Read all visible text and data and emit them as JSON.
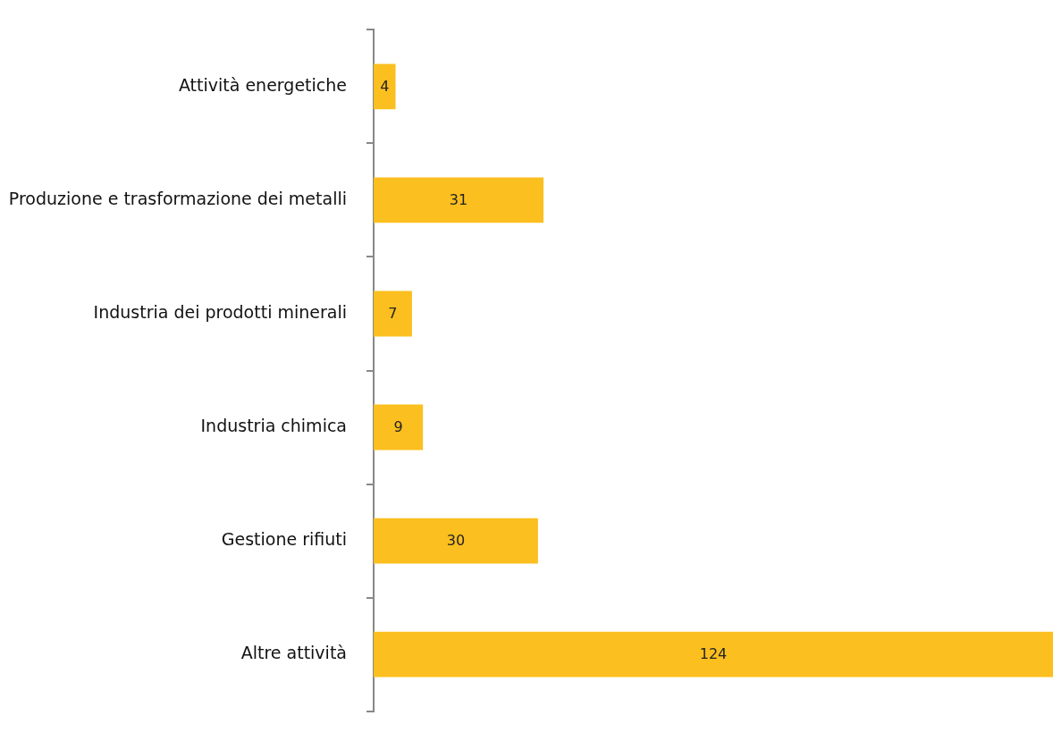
{
  "chart_data": {
    "type": "bar",
    "orientation": "horizontal",
    "categories": [
      "Attività energetiche",
      "Produzione e trasformazione dei metalli",
      "Industria dei prodotti minerali",
      "Industria chimica",
      "Gestione rifiuti",
      "Altre attività"
    ],
    "values": [
      4,
      31,
      7,
      9,
      30,
      124
    ],
    "color": "#fbbf1f",
    "xlim": [
      0,
      124
    ],
    "data_labels": true,
    "legend": false,
    "tick_labels": "y"
  }
}
